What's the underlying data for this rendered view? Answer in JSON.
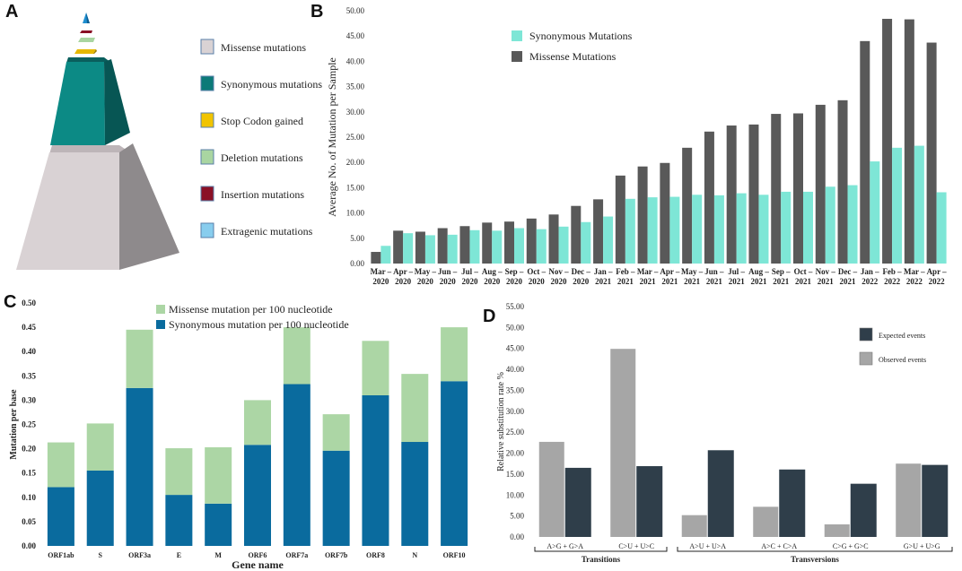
{
  "panels": {
    "a": {
      "label": "A"
    },
    "b": {
      "label": "B"
    },
    "c": {
      "label": "C"
    },
    "d": {
      "label": "D"
    }
  },
  "chart_data": [
    {
      "id": "A",
      "type": "pyramid",
      "legend": [
        {
          "name": "Missense mutations",
          "color": "#d9d2d4"
        },
        {
          "name": "Synonymous mutations",
          "color": "#0c7a78"
        },
        {
          "name": "Stop Codon gained",
          "color": "#f1c400"
        },
        {
          "name": "Deletion mutations",
          "color": "#a9d5a1"
        },
        {
          "name": "Insertion mutations",
          "color": "#8a1026"
        },
        {
          "name": "Extragenic mutations",
          "color": "#88cdee"
        }
      ]
    },
    {
      "id": "B",
      "type": "bar",
      "ylabel": "Average No. of Mutation per Sample",
      "ylim": [
        0,
        50
      ],
      "yticks": [
        "0.00",
        "5.00",
        "10.00",
        "15.00",
        "20.00",
        "25.00",
        "30.00",
        "35.00",
        "40.00",
        "45.00",
        "50.00"
      ],
      "categories": [
        [
          "Mar –",
          "2020"
        ],
        [
          "Apr –",
          "2020"
        ],
        [
          "May –",
          "2020"
        ],
        [
          "Jun –",
          "2020"
        ],
        [
          "Jul –",
          "2020"
        ],
        [
          "Aug –",
          "2020"
        ],
        [
          "Sep –",
          "2020"
        ],
        [
          "Oct –",
          "2020"
        ],
        [
          "Nov –",
          "2020"
        ],
        [
          "Dec –",
          "2020"
        ],
        [
          "Jan –",
          "2021"
        ],
        [
          "Feb –",
          "2021"
        ],
        [
          "Mar –",
          "2021"
        ],
        [
          "Apr –",
          "2021"
        ],
        [
          "May –",
          "2021"
        ],
        [
          "Jun –",
          "2021"
        ],
        [
          "Jul –",
          "2021"
        ],
        [
          "Aug –",
          "2021"
        ],
        [
          "Sep –",
          "2021"
        ],
        [
          "Oct –",
          "2021"
        ],
        [
          "Nov –",
          "2021"
        ],
        [
          "Dec –",
          "2021"
        ],
        [
          "Jan –",
          "2022"
        ],
        [
          "Feb –",
          "2022"
        ],
        [
          "Mar –",
          "2022"
        ],
        [
          "Apr –",
          "2022"
        ]
      ],
      "series": [
        {
          "name": "Missense Mutations",
          "color": "#595959",
          "values": [
            2.3,
            6.5,
            6.3,
            7.0,
            7.4,
            8.1,
            8.3,
            8.9,
            9.7,
            11.4,
            12.7,
            17.4,
            19.2,
            19.9,
            22.9,
            26.1,
            27.3,
            27.5,
            29.6,
            29.7,
            31.4,
            32.3,
            44.0,
            48.4,
            48.3,
            43.7
          ]
        },
        {
          "name": "Synonymous Mutations",
          "color": "#7ee6d6",
          "values": [
            3.5,
            6.0,
            5.6,
            5.7,
            6.6,
            6.5,
            7.0,
            6.8,
            7.3,
            8.2,
            9.3,
            12.8,
            13.1,
            13.2,
            13.6,
            13.5,
            13.9,
            13.6,
            14.2,
            14.2,
            15.2,
            15.5,
            20.2,
            22.9,
            23.3,
            14.1
          ]
        }
      ],
      "legend_order": [
        "Synonymous Mutations",
        "Missense Mutations"
      ]
    },
    {
      "id": "C",
      "type": "stacked_bar",
      "xlabel": "Gene name",
      "ylabel": "Mutation per base",
      "ylim": [
        0,
        0.5
      ],
      "yticks": [
        "0.00",
        "0.05",
        "0.10",
        "0.15",
        "0.20",
        "0.25",
        "0.30",
        "0.35",
        "0.40",
        "0.45",
        "0.50"
      ],
      "categories": [
        "ORF1ab",
        "S",
        "ORF3a",
        "E",
        "M",
        "ORF6",
        "ORF7a",
        "ORF7b",
        "ORF8",
        "N",
        "ORF10"
      ],
      "series": [
        {
          "name": "Synonymous mutation per 100 nucleotide",
          "color": "#0a6b9e",
          "values": [
            0.121,
            0.155,
            0.325,
            0.105,
            0.087,
            0.208,
            0.333,
            0.196,
            0.31,
            0.214,
            0.339
          ]
        },
        {
          "name": "Missense mutation per 100 nucleotide",
          "color": "#acd6a5",
          "values": [
            0.092,
            0.097,
            0.12,
            0.096,
            0.116,
            0.092,
            0.117,
            0.075,
            0.112,
            0.14,
            0.111
          ]
        }
      ],
      "legend_order": [
        "Missense mutation per 100 nucleotide",
        "Synonymous mutation per 100 nucleotide"
      ]
    },
    {
      "id": "D",
      "type": "bar",
      "ylabel": "Relative substitution rate %",
      "ylim": [
        0,
        55
      ],
      "yticks": [
        "0.00",
        "5.00",
        "10.00",
        "15.00",
        "20.00",
        "25.00",
        "30.00",
        "35.00",
        "40.00",
        "45.00",
        "50.00",
        "55.00"
      ],
      "categories": [
        "A>G + G>A",
        "C>U + U>C",
        "A>U + U>A",
        "A>C + C>A",
        "C>G + G>C",
        "G>U + U>G"
      ],
      "series": [
        {
          "name": "Observed events",
          "color": "#a6a6a6",
          "values": [
            22.7,
            44.9,
            5.2,
            7.2,
            3.0,
            17.5
          ]
        },
        {
          "name": "Expected events",
          "color": "#2f3e4a",
          "values": [
            16.5,
            16.9,
            20.7,
            16.1,
            12.7,
            17.2
          ]
        }
      ],
      "legend_order": [
        "Expected events",
        "Observed events"
      ],
      "groups": [
        {
          "label": "Transitions"
        },
        {
          "label": "Transversions"
        }
      ]
    }
  ]
}
